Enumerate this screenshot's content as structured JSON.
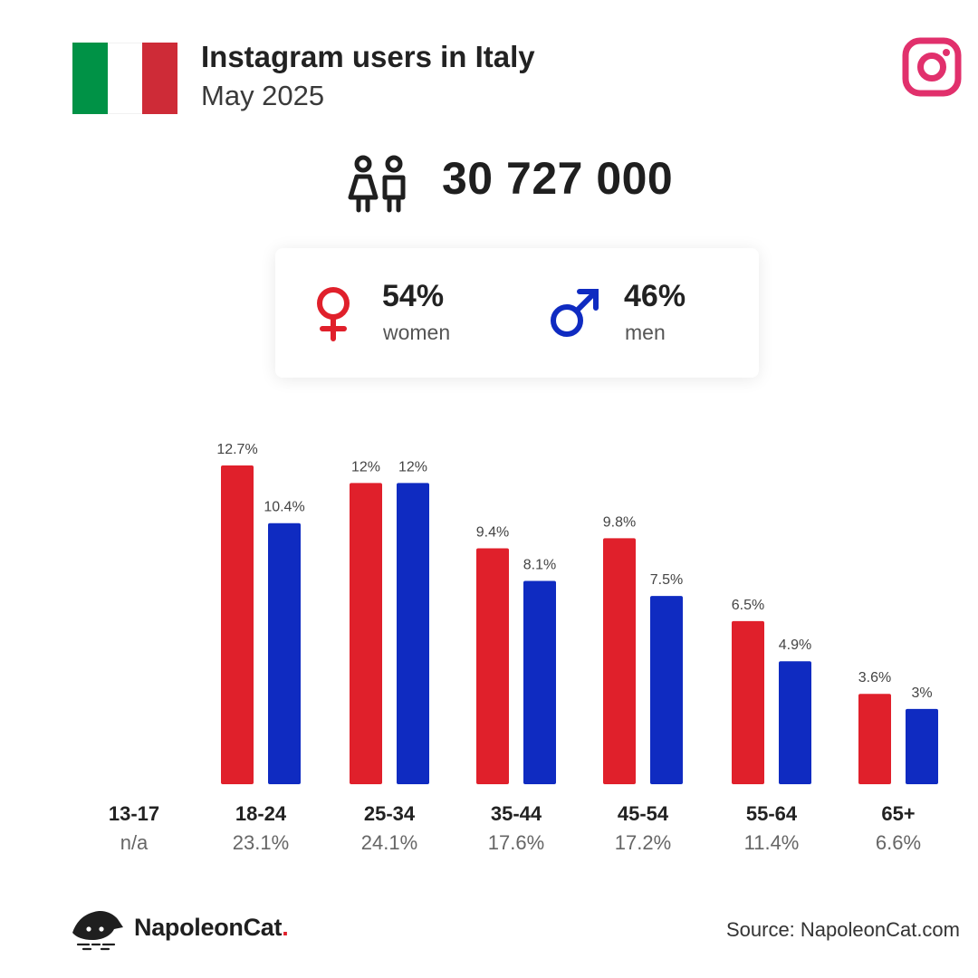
{
  "header": {
    "title": "Instagram users in Italy",
    "subtitle": "May 2025"
  },
  "total_users": "30 727 000",
  "gender": {
    "women": {
      "pct": "54%",
      "label": "women",
      "color": "#e0202b"
    },
    "men": {
      "pct": "46%",
      "label": "men",
      "color": "#0f2bc1"
    }
  },
  "chart_data": {
    "type": "bar",
    "categories": [
      "13-17",
      "18-24",
      "25-34",
      "35-44",
      "45-54",
      "55-64",
      "65+"
    ],
    "category_totals": [
      "n/a",
      "23.1%",
      "24.1%",
      "17.6%",
      "17.2%",
      "11.4%",
      "6.6%"
    ],
    "series": [
      {
        "color": "#e0202b",
        "values": [
          null,
          12.7,
          12,
          9.4,
          9.8,
          6.5,
          3.6
        ],
        "labels": [
          "",
          "12.7%",
          "12%",
          "9.4%",
          "9.8%",
          "6.5%",
          "3.6%"
        ]
      },
      {
        "color": "#0f2bc1",
        "values": [
          null,
          10.4,
          12,
          8.1,
          7.5,
          4.9,
          3
        ],
        "labels": [
          "",
          "10.4%",
          "12%",
          "8.1%",
          "7.5%",
          "4.9%",
          "3%"
        ]
      }
    ],
    "ylim": [
      0,
      12.7
    ],
    "grid": false
  },
  "footer": {
    "brand_name": "NapoleonCat",
    "brand_dot": ".",
    "source": "Source: NapoleonCat.com"
  },
  "colors": {
    "instagram": "#e1306c",
    "flag_green": "#009246",
    "flag_red": "#ce2b37"
  },
  "icons": [
    "italy-flag-icon",
    "instagram-icon",
    "users-icon",
    "female-icon",
    "male-icon",
    "napoleoncat-logo-icon"
  ]
}
